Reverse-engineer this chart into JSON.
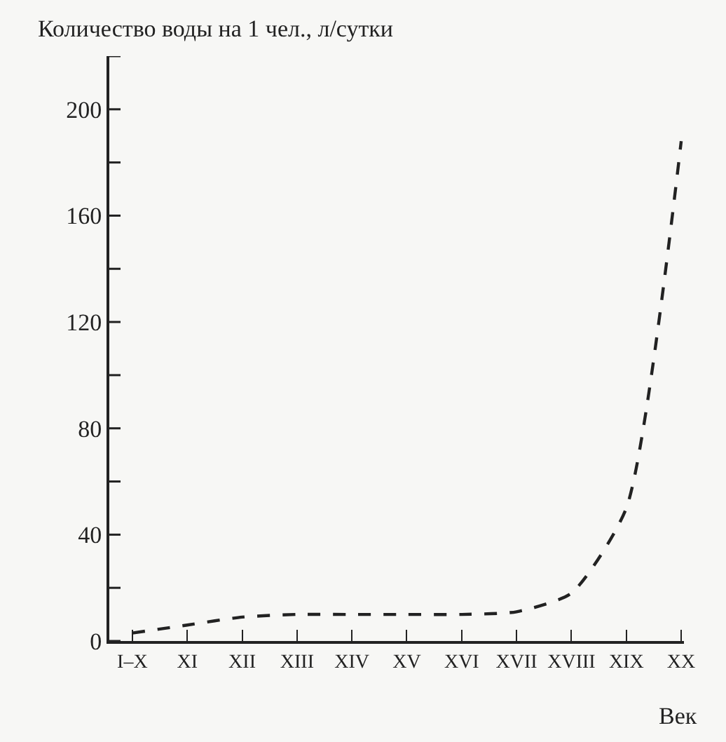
{
  "chart_data": {
    "type": "line",
    "ylabel": "Количество воды на 1 чел., л/сутки",
    "xlabel": "Век",
    "categories": [
      "I–X",
      "XI",
      "XII",
      "XIII",
      "XIV",
      "XV",
      "XVI",
      "XVII",
      "XVIII",
      "XIX",
      "XX"
    ],
    "series": [
      {
        "color": "#222222",
        "values": [
          3,
          6,
          9,
          10,
          10,
          10,
          10,
          11,
          18,
          50,
          188
        ]
      }
    ],
    "ylim": [
      0,
      220
    ],
    "yticks": [
      0,
      {
        "value": 20,
        "label": null
      },
      40,
      {
        "value": 60,
        "label": null
      },
      80,
      {
        "value": 100,
        "label": null
      },
      120,
      {
        "value": 140,
        "label": null
      },
      160,
      {
        "value": 180,
        "label": null
      },
      200,
      {
        "value": 220,
        "label": null
      }
    ],
    "grid": false,
    "marker": "none",
    "line_style": "dashed"
  }
}
